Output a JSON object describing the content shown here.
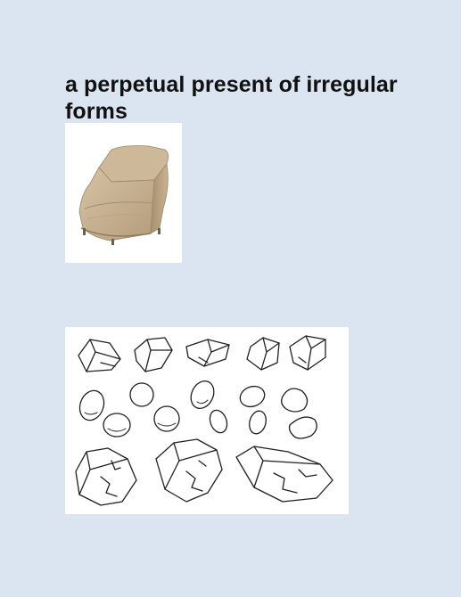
{
  "page": {
    "title": "a perpetual present of irregular forms",
    "background_color": "#dae5f1"
  },
  "images": [
    {
      "name": "chair-cover-photo",
      "subject": "beige patio chair cover"
    },
    {
      "name": "stones-sketch",
      "subject": "hand-drawn sketches of stones and pebbles"
    }
  ],
  "colors": {
    "cover_fabric": "#c7b294",
    "cover_shadow": "#9c8567",
    "sketch_ink": "#1f1f1f"
  }
}
